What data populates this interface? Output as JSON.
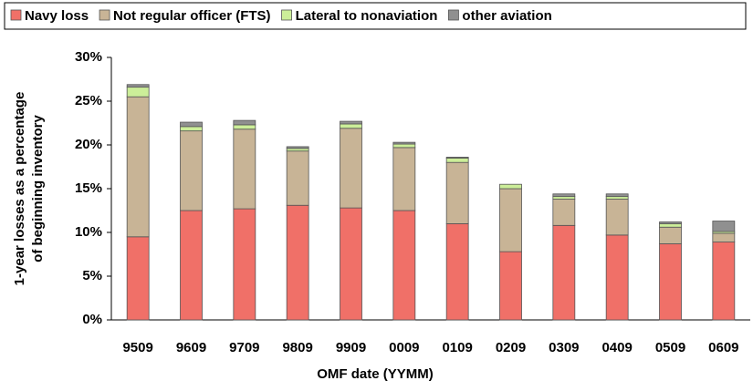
{
  "chart_data": {
    "type": "stacked-bar",
    "categories": [
      "9509",
      "9609",
      "9709",
      "9809",
      "9909",
      "0009",
      "0109",
      "0209",
      "0309",
      "0409",
      "0509",
      "0609"
    ],
    "series": [
      {
        "name": "Navy loss",
        "color": "#f07068",
        "values": [
          9.5,
          12.5,
          12.7,
          13.1,
          12.8,
          12.5,
          11.0,
          7.8,
          10.8,
          9.7,
          8.7,
          8.9
        ]
      },
      {
        "name": "Not regular officer (FTS)",
        "color": "#c8b496",
        "values": [
          16.0,
          9.1,
          9.1,
          6.2,
          9.1,
          7.2,
          7.0,
          7.2,
          3.0,
          4.1,
          1.9,
          1.0
        ]
      },
      {
        "name": "Lateral to nonaviation",
        "color": "#ccee99",
        "values": [
          1.1,
          0.5,
          0.5,
          0.3,
          0.5,
          0.4,
          0.5,
          0.5,
          0.3,
          0.3,
          0.4,
          0.2
        ]
      },
      {
        "name": "other aviation",
        "color": "#909090",
        "values": [
          0.3,
          0.5,
          0.5,
          0.2,
          0.3,
          0.2,
          0.1,
          0.0,
          0.3,
          0.3,
          0.2,
          1.2
        ]
      }
    ],
    "xlabel": "OMF date (YYMM)",
    "ylabel": [
      "1-year losses as a percentage",
      "of beginning inventory"
    ],
    "ylim": [
      0,
      30
    ],
    "yticks": [
      {
        "value": 0,
        "label": "0%"
      },
      {
        "value": 5,
        "label": "5%"
      },
      {
        "value": 10,
        "label": "10%"
      },
      {
        "value": 15,
        "label": "15%"
      },
      {
        "value": 20,
        "label": "20%"
      },
      {
        "value": 25,
        "label": "25%"
      },
      {
        "value": 30,
        "label": "30%"
      }
    ],
    "legend": "top"
  }
}
